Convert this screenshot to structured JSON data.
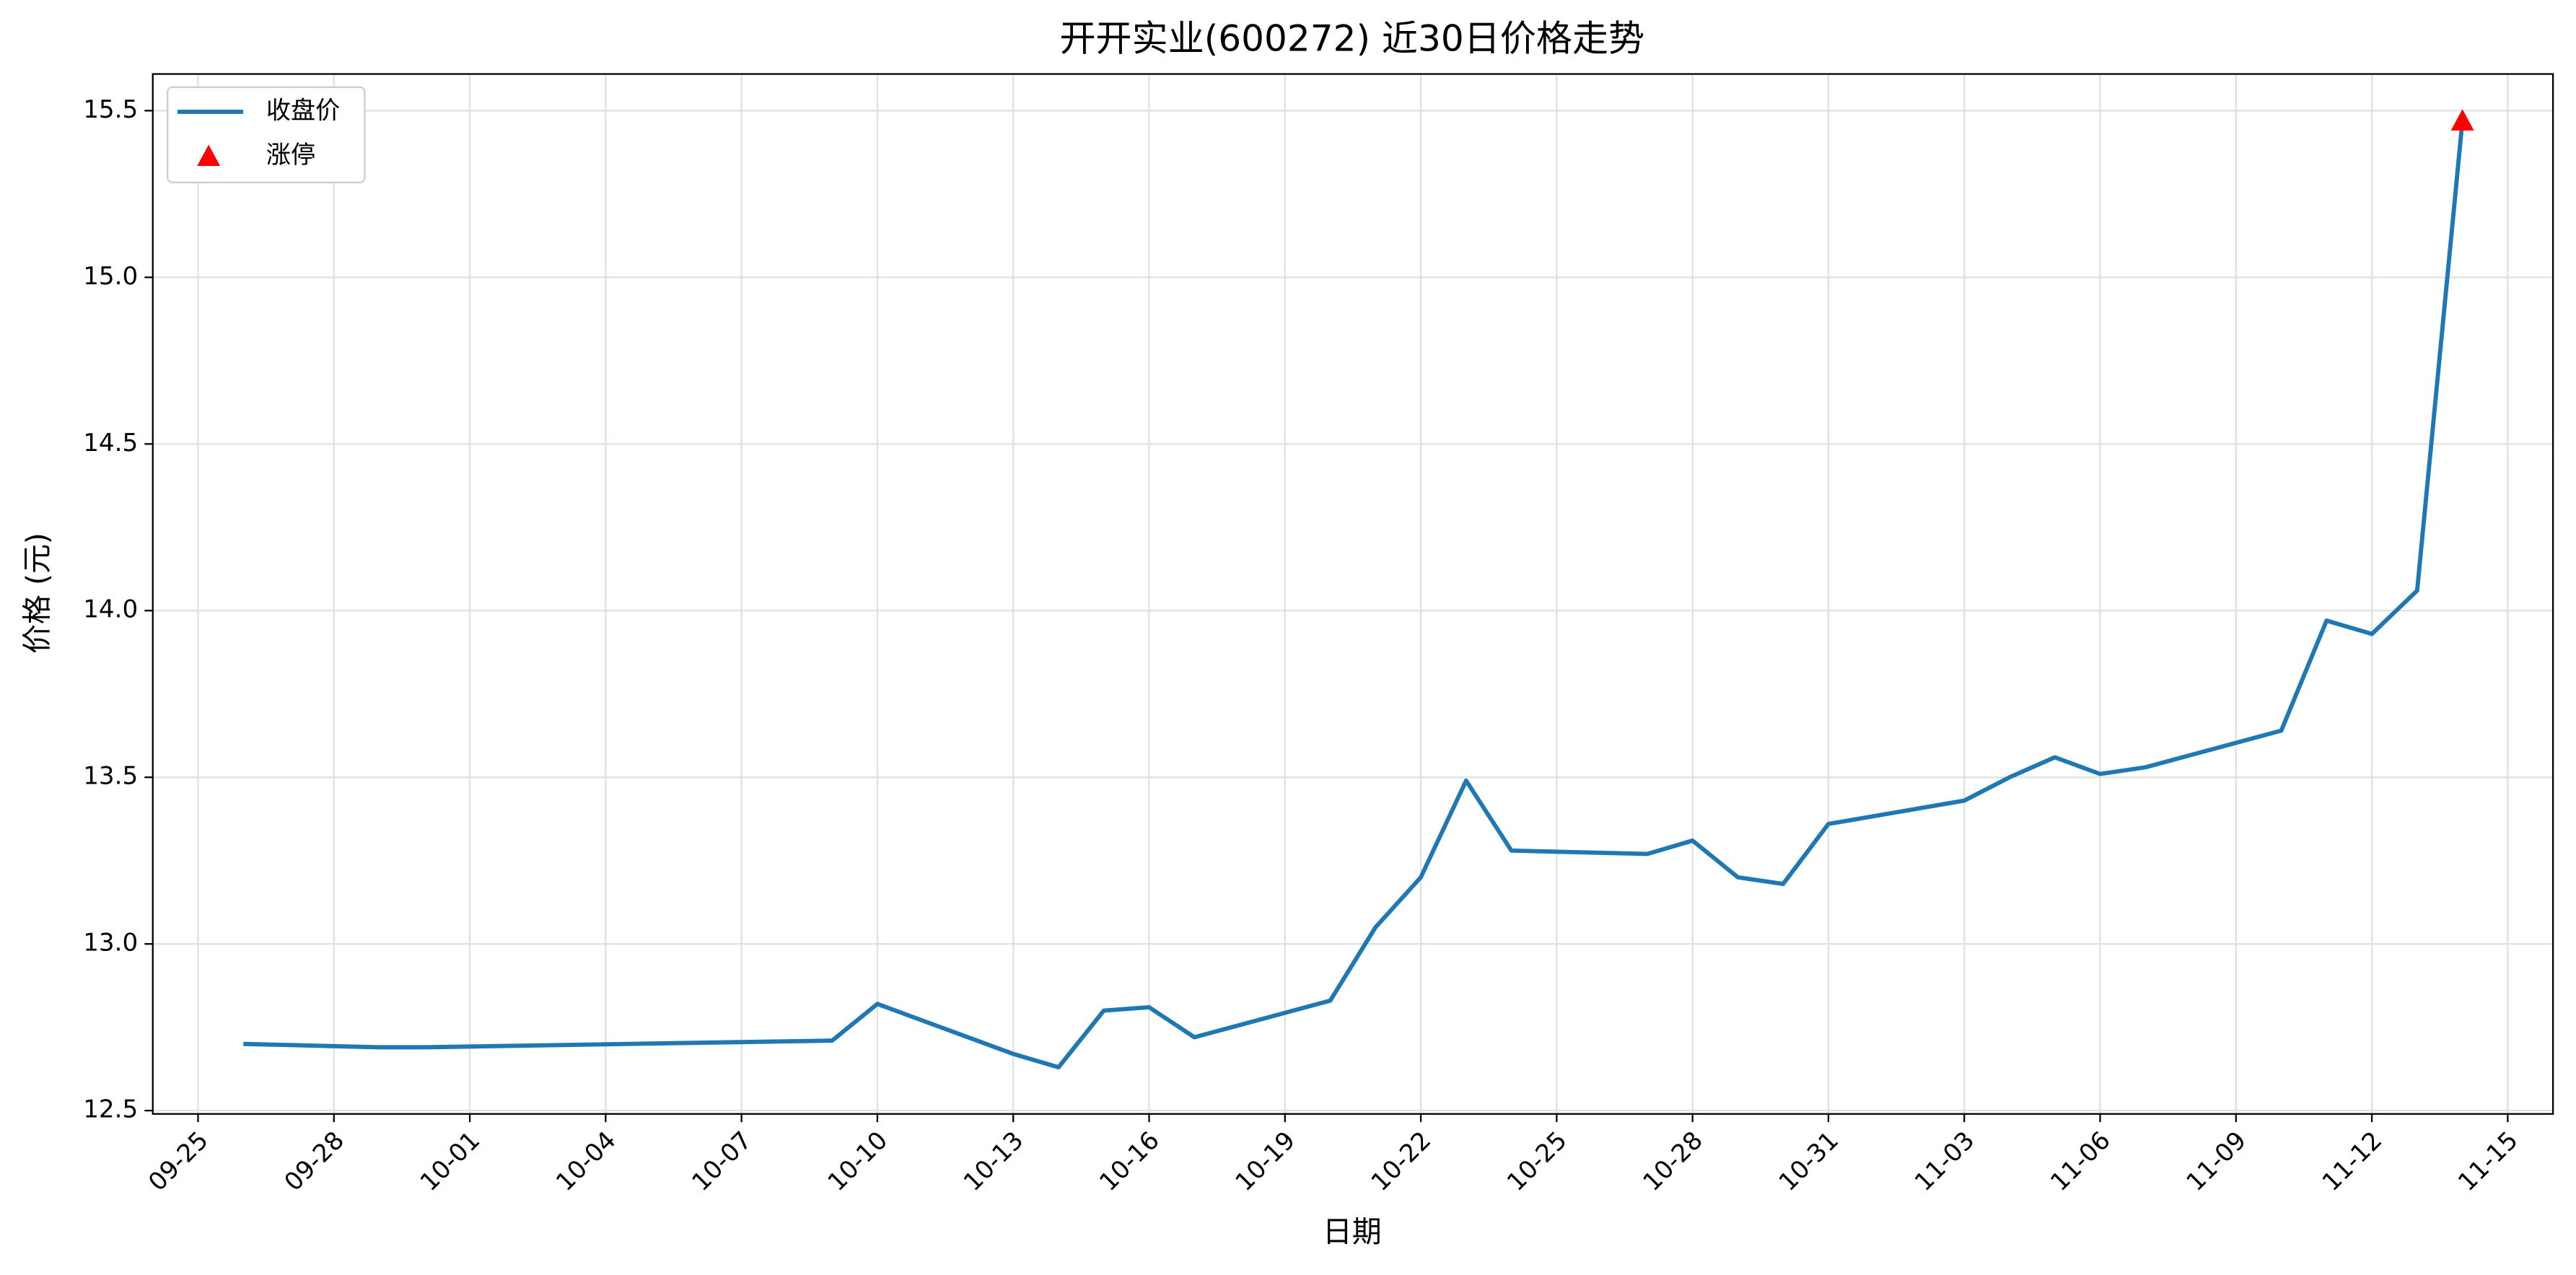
{
  "chart_data": {
    "type": "line",
    "title": "开开实业(600272) 近30日价格走势",
    "xlabel": "日期",
    "ylabel": "价格 (元)",
    "series": [
      {
        "name": "收盘价",
        "color": "#1f77b4",
        "type": "line",
        "x": [
          "09-26",
          "09-29",
          "09-30",
          "10-09",
          "10-10",
          "10-13",
          "10-14",
          "10-15",
          "10-16",
          "10-17",
          "10-20",
          "10-21",
          "10-22",
          "10-23",
          "10-24",
          "10-27",
          "10-28",
          "10-29",
          "10-30",
          "10-31",
          "11-03",
          "11-04",
          "11-05",
          "11-06",
          "11-07",
          "11-10",
          "11-11",
          "11-12",
          "11-13",
          "11-14"
        ],
        "values": [
          12.7,
          12.69,
          12.69,
          12.71,
          12.82,
          12.67,
          12.63,
          12.8,
          12.81,
          12.72,
          12.83,
          13.05,
          13.2,
          13.49,
          13.28,
          13.27,
          13.31,
          13.2,
          13.18,
          13.36,
          13.43,
          13.5,
          13.56,
          13.51,
          13.53,
          13.64,
          13.97,
          13.93,
          14.06,
          15.47
        ]
      },
      {
        "name": "涨停",
        "color": "#ff0000",
        "type": "scatter",
        "x": [
          "11-14"
        ],
        "values": [
          15.47
        ]
      }
    ],
    "xlim": [
      "09-24",
      "11-16"
    ],
    "xticks": [
      "09-25",
      "09-28",
      "10-01",
      "10-04",
      "10-07",
      "10-10",
      "10-13",
      "10-16",
      "10-19",
      "10-22",
      "10-25",
      "10-28",
      "10-31",
      "11-03",
      "11-06",
      "11-09",
      "11-12",
      "11-15"
    ],
    "ylim": [
      12.49,
      15.61
    ],
    "yticks": [
      12.5,
      {
        "value": 13,
        "label": "13.0"
      },
      13.5,
      {
        "value": 14,
        "label": "14.0"
      },
      14.5,
      {
        "value": 15,
        "label": "15.0"
      },
      15.5
    ],
    "grid": true,
    "legend": "upper left"
  }
}
